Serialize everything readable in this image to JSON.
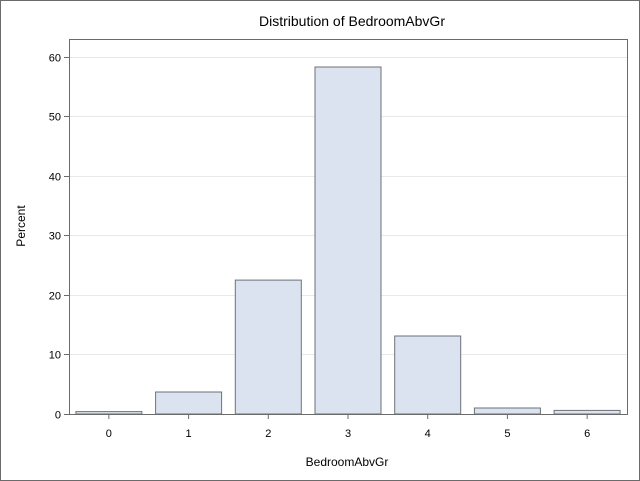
{
  "chart_data": {
    "type": "bar",
    "title": "Distribution of BedroomAbvGr",
    "xlabel": "BedroomAbvGr",
    "ylabel": "Percent",
    "categories": [
      "0",
      "1",
      "2",
      "3",
      "4",
      "5",
      "6"
    ],
    "values": [
      0.4,
      3.7,
      22.5,
      58.3,
      13.1,
      1.0,
      0.6
    ],
    "ylim": [
      0,
      63
    ],
    "yticks": [
      "0",
      "10",
      "20",
      "30",
      "40",
      "50",
      "60"
    ],
    "grid": true,
    "legend": "none",
    "colors": {
      "bar_fill": "#dae3ef",
      "bar_stroke": "#6e7278",
      "grid": "#e8e8e8",
      "axis": "#6b6b6b"
    }
  }
}
